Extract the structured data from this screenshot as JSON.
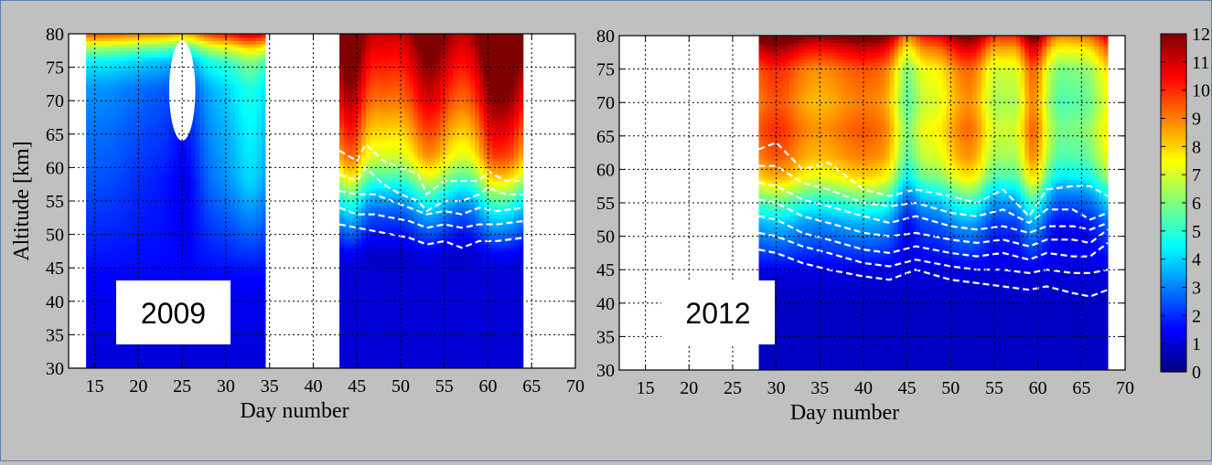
{
  "chart_data": [
    {
      "type": "heatmap",
      "panel_label": "2009",
      "xlabel": "Day number",
      "ylabel": "Altitude [km]",
      "xlim": [
        12,
        70
      ],
      "ylim": [
        30,
        80
      ],
      "xticks": [
        15,
        20,
        25,
        30,
        35,
        40,
        45,
        50,
        55,
        60,
        65,
        70
      ],
      "yticks": [
        30,
        35,
        40,
        45,
        50,
        55,
        60,
        65,
        70,
        75,
        80
      ],
      "grid": true,
      "data_segments": [
        {
          "day_range": [
            14,
            34.5
          ],
          "profile": [
            [
              30,
              1
            ],
            [
              36,
              1.2
            ],
            [
              42,
              1.4
            ],
            [
              48,
              1.8
            ],
            [
              54,
              2.2
            ],
            [
              60,
              2.6
            ],
            [
              66,
              2.9
            ],
            [
              72,
              3.3
            ],
            [
              76,
              4.5
            ],
            [
              78,
              6.5
            ],
            [
              80,
              9.5
            ]
          ],
          "perturbations": [
            {
              "day": 22,
              "value": -0.6,
              "width": 4
            },
            {
              "day": 25.5,
              "value": -1,
              "width": 2
            },
            {
              "day": 30,
              "value": 0.6,
              "width": 4
            },
            {
              "day": 33,
              "value": 1.2,
              "width": 2
            }
          ],
          "missing_region": "ellipse around day 25, altitude 64-79 km"
        },
        {
          "day_range": [
            43,
            64
          ],
          "profile": [
            [
              30,
              1
            ],
            [
              40,
              1
            ],
            [
              47,
              1
            ],
            [
              50,
              2
            ],
            [
              53,
              3
            ],
            [
              56,
              4.5
            ],
            [
              59,
              6.5
            ],
            [
              62,
              8
            ],
            [
              66,
              9
            ],
            [
              70,
              10
            ],
            [
              74,
              10.8
            ],
            [
              80,
              12
            ]
          ],
          "perturbations": [
            {
              "day": 44.5,
              "value": 1.8,
              "width": 1.5
            },
            {
              "day": 46,
              "value": -0.8,
              "width": 1.8
            },
            {
              "day": 50,
              "value": -1,
              "width": 3
            },
            {
              "day": 53,
              "value": 1.2,
              "width": 2
            },
            {
              "day": 57,
              "value": -0.8,
              "width": 2
            },
            {
              "day": 60.5,
              "value": 1.6,
              "width": 1.5
            },
            {
              "day": 62.5,
              "value": 1.4,
              "width": 1.5
            }
          ]
        }
      ],
      "dashed_contours": [
        {
          "x": [
            43,
            45,
            46,
            48,
            50,
            52,
            53,
            55,
            57,
            59,
            60,
            62,
            64
          ],
          "y": [
            62.5,
            61,
            63.5,
            61,
            60,
            59,
            56,
            58,
            58,
            58,
            59.5,
            58,
            58
          ]
        },
        {
          "x": [
            43,
            45,
            46,
            48,
            50,
            52,
            53,
            55,
            57,
            59,
            60,
            62,
            64
          ],
          "y": [
            59,
            58,
            60,
            57.5,
            56,
            55,
            53.5,
            55,
            55,
            56,
            57,
            56,
            56
          ]
        },
        {
          "x": [
            43,
            45,
            47,
            49,
            51,
            53,
            55,
            57,
            59,
            61,
            64
          ],
          "y": [
            56.5,
            56,
            56,
            55,
            54,
            53,
            53.5,
            53,
            54,
            53.5,
            54
          ]
        },
        {
          "x": [
            43,
            45,
            47,
            49,
            51,
            53,
            55,
            57,
            59,
            61,
            64
          ],
          "y": [
            54,
            53,
            53,
            52.5,
            52,
            51,
            51.5,
            51,
            51.5,
            51.5,
            52
          ]
        },
        {
          "x": [
            43,
            45,
            47,
            49,
            51,
            53,
            55,
            57,
            59,
            61,
            64
          ],
          "y": [
            51.5,
            51,
            50.5,
            50,
            49.5,
            48.5,
            49,
            48,
            49,
            49,
            49.5
          ]
        }
      ]
    },
    {
      "type": "heatmap",
      "panel_label": "2012",
      "xlabel": "Day number",
      "ylabel": "",
      "xlim": [
        12,
        70
      ],
      "ylim": [
        30,
        80
      ],
      "xticks": [
        15,
        20,
        25,
        30,
        35,
        40,
        45,
        50,
        55,
        60,
        65,
        70
      ],
      "yticks": [
        30,
        35,
        40,
        45,
        50,
        55,
        60,
        65,
        70,
        75,
        80
      ],
      "grid": true,
      "data_segments": [
        {
          "day_range": [
            28,
            68
          ],
          "profile": [
            [
              30,
              0.8
            ],
            [
              40,
              0.8
            ],
            [
              44,
              1
            ],
            [
              48,
              2
            ],
            [
              52,
              3
            ],
            [
              56,
              5
            ],
            [
              59,
              7
            ],
            [
              62,
              8
            ],
            [
              66,
              8.5
            ],
            [
              70,
              8
            ],
            [
              75,
              8.5
            ],
            [
              78,
              10
            ],
            [
              80,
              11.5
            ]
          ],
          "perturbations": [
            {
              "day": 30,
              "value": 1.5,
              "width": 3
            },
            {
              "day": 40,
              "value": 1,
              "width": 4
            },
            {
              "day": 45,
              "value": -2.5,
              "width": 1.5
            },
            {
              "day": 48,
              "value": -1,
              "width": 2
            },
            {
              "day": 52,
              "value": 0.8,
              "width": 2
            },
            {
              "day": 55,
              "value": -1.5,
              "width": 1.5
            },
            {
              "day": 57.5,
              "value": -1.5,
              "width": 1.5
            },
            {
              "day": 59.5,
              "value": 2,
              "width": 1.5
            },
            {
              "day": 62.5,
              "value": -2.5,
              "width": 3
            },
            {
              "day": 66,
              "value": -1.5,
              "width": 2
            }
          ]
        }
      ],
      "dashed_contours": [
        {
          "x": [
            28,
            30,
            33,
            36,
            40,
            43,
            46,
            50,
            53,
            56,
            59,
            61,
            64,
            66,
            68
          ],
          "y": [
            63,
            64,
            60,
            61,
            57,
            56,
            57,
            56,
            55,
            57,
            53,
            57,
            57.5,
            57.5,
            56
          ]
        },
        {
          "x": [
            28,
            30,
            33,
            36,
            40,
            43,
            46,
            50,
            53,
            56,
            59,
            61,
            64,
            66,
            68
          ],
          "y": [
            60.5,
            60.5,
            58,
            57,
            55,
            54.5,
            55,
            53.5,
            53,
            54,
            52,
            54,
            54,
            52.5,
            53.5
          ]
        },
        {
          "x": [
            28,
            30,
            33,
            36,
            40,
            43,
            46,
            50,
            53,
            56,
            59,
            61,
            64,
            66,
            68
          ],
          "y": [
            58,
            57.5,
            55.5,
            54.5,
            53,
            52,
            53,
            51.5,
            51,
            51.5,
            50.5,
            51.5,
            51.5,
            51,
            52
          ]
        },
        {
          "x": [
            28,
            30,
            33,
            36,
            40,
            43,
            46,
            50,
            53,
            56,
            59,
            61,
            64,
            66,
            68
          ],
          "y": [
            55.5,
            55,
            53,
            52,
            50.5,
            50,
            50.5,
            49.5,
            49,
            49.5,
            48.5,
            49.5,
            49.5,
            49,
            51
          ]
        },
        {
          "x": [
            28,
            30,
            33,
            36,
            40,
            43,
            46,
            50,
            53,
            56,
            59,
            61,
            64,
            66,
            68
          ],
          "y": [
            53,
            52.5,
            50.5,
            49.5,
            48,
            47.5,
            48.5,
            47.5,
            47,
            47.5,
            46.5,
            47.5,
            47,
            47,
            49
          ]
        },
        {
          "x": [
            28,
            30,
            33,
            36,
            40,
            43,
            46,
            50,
            53,
            56,
            59,
            61,
            64,
            66,
            68
          ],
          "y": [
            50.5,
            50,
            48.5,
            47.5,
            46,
            45.5,
            46.5,
            45.5,
            45,
            45,
            44.5,
            45,
            44.5,
            44.5,
            45
          ]
        },
        {
          "x": [
            28,
            30,
            33,
            36,
            40,
            43,
            46,
            50,
            53,
            56,
            59,
            61,
            64,
            66,
            68
          ],
          "y": [
            48,
            47.5,
            46,
            45,
            44,
            43.5,
            45,
            43.5,
            43,
            42.5,
            42,
            42.5,
            41.5,
            41,
            42
          ]
        }
      ]
    }
  ],
  "colorbar": {
    "ticks": [
      0,
      1,
      2,
      3,
      4,
      5,
      6,
      7,
      8,
      9,
      10,
      11,
      12
    ],
    "range": [
      0,
      12
    ],
    "colormap": "jet"
  }
}
